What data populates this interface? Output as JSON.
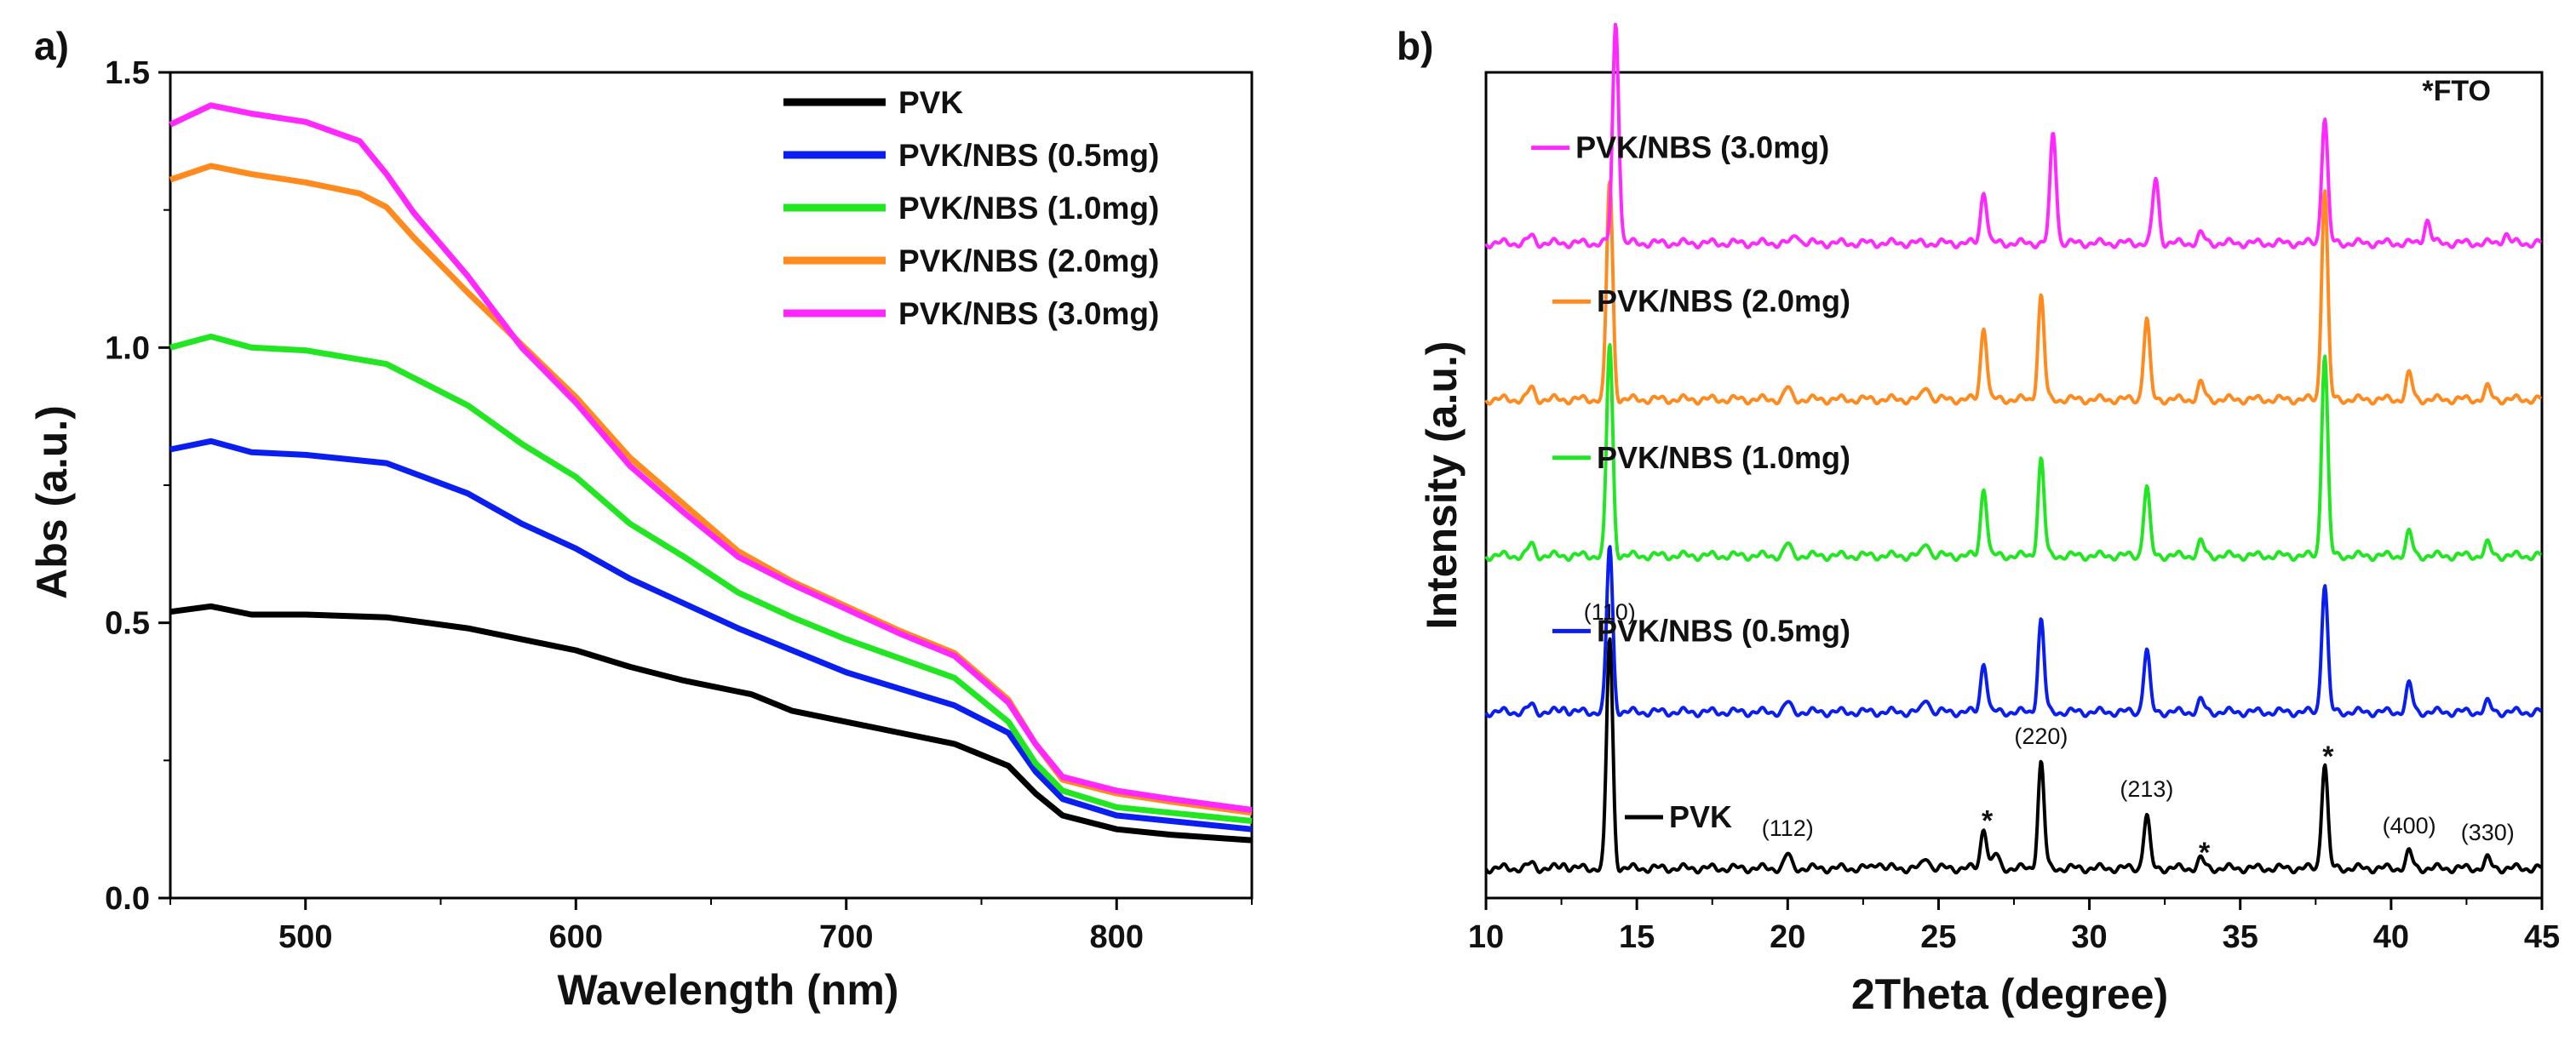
{
  "chart_data": [
    {
      "panel": "a)",
      "type": "line",
      "xlabel": "Wavelength (nm)",
      "ylabel": "Abs (a.u.)",
      "xlim": [
        450,
        850
      ],
      "ylim": [
        0,
        1.5
      ],
      "xticks": [
        "500",
        "600",
        "700",
        "800"
      ],
      "yticks": [
        "0.0",
        "0.5",
        "1.0",
        "1.5"
      ],
      "legend": "top-right",
      "series": [
        {
          "name": "PVK",
          "color": "#000000",
          "x": [
            450,
            465,
            480,
            500,
            530,
            560,
            580,
            600,
            620,
            640,
            660,
            665,
            680,
            700,
            720,
            740,
            760,
            770,
            780,
            800,
            820,
            850
          ],
          "y": [
            0.52,
            0.53,
            0.515,
            0.515,
            0.51,
            0.49,
            0.47,
            0.45,
            0.42,
            0.395,
            0.375,
            0.37,
            0.34,
            0.32,
            0.3,
            0.28,
            0.24,
            0.19,
            0.15,
            0.125,
            0.115,
            0.105
          ]
        },
        {
          "name": "PVK/NBS (0.5mg)",
          "color": "#0a1ef0",
          "x": [
            450,
            465,
            480,
            500,
            530,
            560,
            580,
            600,
            620,
            640,
            660,
            680,
            700,
            720,
            740,
            760,
            770,
            780,
            800,
            820,
            850
          ],
          "y": [
            0.815,
            0.83,
            0.81,
            0.805,
            0.79,
            0.735,
            0.68,
            0.635,
            0.58,
            0.535,
            0.49,
            0.45,
            0.41,
            0.38,
            0.35,
            0.3,
            0.23,
            0.18,
            0.15,
            0.14,
            0.125
          ]
        },
        {
          "name": "PVK/NBS (1.0mg)",
          "color": "#22e622",
          "x": [
            450,
            465,
            480,
            500,
            530,
            560,
            580,
            600,
            620,
            640,
            660,
            680,
            700,
            720,
            740,
            760,
            770,
            780,
            800,
            820,
            850
          ],
          "y": [
            1.0,
            1.02,
            1.0,
            0.995,
            0.97,
            0.895,
            0.825,
            0.765,
            0.68,
            0.62,
            0.555,
            0.51,
            0.47,
            0.435,
            0.4,
            0.32,
            0.245,
            0.195,
            0.165,
            0.155,
            0.14
          ]
        },
        {
          "name": "PVK/NBS (2.0mg)",
          "color": "#ff8a1e",
          "x": [
            450,
            465,
            480,
            500,
            520,
            530,
            540,
            560,
            580,
            600,
            620,
            640,
            660,
            680,
            700,
            720,
            740,
            760,
            770,
            780,
            800,
            820,
            850
          ],
          "y": [
            1.305,
            1.33,
            1.315,
            1.3,
            1.28,
            1.255,
            1.2,
            1.1,
            1.005,
            0.91,
            0.8,
            0.715,
            0.63,
            0.575,
            0.53,
            0.485,
            0.445,
            0.36,
            0.28,
            0.215,
            0.19,
            0.175,
            0.155
          ]
        },
        {
          "name": "PVK/NBS (3.0mg)",
          "color": "#ff28ff",
          "x": [
            450,
            465,
            480,
            500,
            520,
            530,
            540,
            560,
            580,
            600,
            620,
            640,
            660,
            680,
            700,
            720,
            740,
            760,
            770,
            780,
            800,
            820,
            850
          ],
          "y": [
            1.405,
            1.44,
            1.425,
            1.41,
            1.375,
            1.315,
            1.245,
            1.13,
            1.0,
            0.9,
            0.785,
            0.7,
            0.62,
            0.57,
            0.525,
            0.48,
            0.44,
            0.355,
            0.28,
            0.22,
            0.195,
            0.18,
            0.16
          ]
        }
      ]
    },
    {
      "panel": "b)",
      "type": "line",
      "xlabel": "2Theta (degree)",
      "ylabel": "Intensity (a.u.)",
      "xlim": [
        10,
        45
      ],
      "xticks": [
        "10",
        "15",
        "20",
        "25",
        "30",
        "35",
        "40",
        "45"
      ],
      "note": "*FTO",
      "offset_series": true,
      "series": [
        {
          "name": "PVK",
          "color": "#000000",
          "level": 1.0,
          "peaks": [
            [
              11.5,
              0.02
            ],
            [
              12.6,
              0.02
            ],
            [
              14.1,
              1.0
            ],
            [
              20.0,
              0.06
            ],
            [
              23.0,
              0.03
            ],
            [
              24.6,
              0.05
            ],
            [
              26.5,
              0.18
            ],
            [
              26.9,
              0.06
            ],
            [
              28.4,
              0.46
            ],
            [
              31.9,
              0.23
            ],
            [
              33.7,
              0.04
            ],
            [
              37.8,
              0.46
            ],
            [
              40.6,
              0.07
            ],
            [
              43.2,
              0.04
            ]
          ]
        },
        {
          "name": "PVK/NBS (0.5mg)",
          "color": "#0a1ef0",
          "level": 4.4,
          "peaks": [
            [
              11.5,
              0.03
            ],
            [
              12.6,
              0.02
            ],
            [
              14.1,
              0.72
            ],
            [
              20.0,
              0.04
            ],
            [
              24.6,
              0.06
            ],
            [
              26.5,
              0.22
            ],
            [
              28.4,
              0.4
            ],
            [
              31.9,
              0.27
            ],
            [
              33.7,
              0.05
            ],
            [
              37.8,
              0.56
            ],
            [
              40.6,
              0.12
            ],
            [
              43.2,
              0.04
            ]
          ]
        },
        {
          "name": "PVK/NBS (1.0mg)",
          "color": "#22e622",
          "level": 7.8,
          "peaks": [
            [
              11.5,
              0.05
            ],
            [
              14.1,
              0.92
            ],
            [
              20.0,
              0.05
            ],
            [
              24.6,
              0.06
            ],
            [
              26.5,
              0.3
            ],
            [
              28.4,
              0.42
            ],
            [
              31.9,
              0.3
            ],
            [
              33.7,
              0.06
            ],
            [
              37.8,
              0.88
            ],
            [
              40.6,
              0.1
            ],
            [
              43.2,
              0.05
            ]
          ]
        },
        {
          "name": "PVK/NBS (2.0mg)",
          "color": "#ff8a1e",
          "level": 11.2,
          "peaks": [
            [
              11.5,
              0.05
            ],
            [
              14.1,
              0.95
            ],
            [
              20.0,
              0.05
            ],
            [
              24.6,
              0.06
            ],
            [
              26.5,
              0.32
            ],
            [
              28.4,
              0.45
            ],
            [
              31.9,
              0.35
            ],
            [
              33.7,
              0.07
            ],
            [
              37.8,
              0.92
            ],
            [
              40.6,
              0.11
            ],
            [
              43.2,
              0.05
            ]
          ]
        },
        {
          "name": "PVK/NBS (3.0mg)",
          "color": "#ff28ff",
          "level": 14.6,
          "peaks": [
            [
              11.5,
              0.03
            ],
            [
              14.3,
              0.96
            ],
            [
              20.3,
              0.04
            ],
            [
              26.5,
              0.23
            ],
            [
              28.8,
              0.48
            ],
            [
              32.2,
              0.28
            ],
            [
              33.7,
              0.04
            ],
            [
              37.8,
              0.55
            ],
            [
              41.2,
              0.1
            ],
            [
              43.8,
              0.04
            ]
          ]
        }
      ],
      "annotations": [
        {
          "text": "(110)",
          "x": 14.1,
          "series": "PVK"
        },
        {
          "text": "(112)",
          "x": 20.0,
          "series": "PVK"
        },
        {
          "text": "*",
          "x": 26.5,
          "series": "PVK"
        },
        {
          "text": "(220)",
          "x": 28.4,
          "series": "PVK"
        },
        {
          "text": "(213)",
          "x": 31.9,
          "series": "PVK"
        },
        {
          "text": "*",
          "x": 33.7,
          "series": "PVK"
        },
        {
          "text": "*",
          "x": 37.8,
          "series": "PVK"
        },
        {
          "text": "(400)",
          "x": 40.6,
          "series": "PVK"
        },
        {
          "text": "(330)",
          "x": 43.2,
          "series": "PVK"
        }
      ]
    }
  ]
}
